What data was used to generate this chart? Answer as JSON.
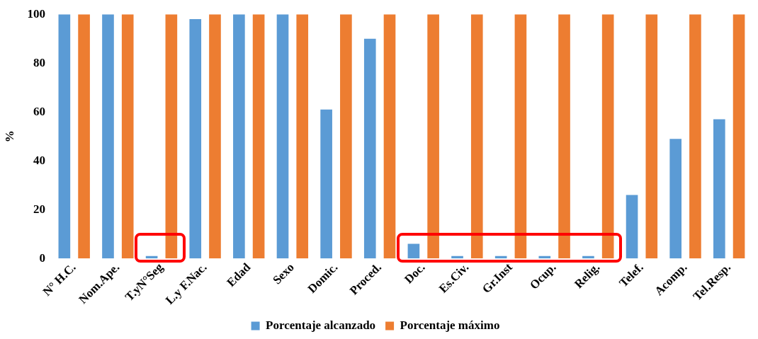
{
  "chart_data": {
    "type": "bar",
    "ylabel": "%",
    "categories": [
      "N° H.C.",
      "Nom.Ape.",
      "T.yN°Seg",
      "L.y F.Nac.",
      "Edad",
      "Sexo",
      "Domic.",
      "Proced.",
      "Doc.",
      "Es.Civ.",
      "Gr.Inst",
      "Ocup.",
      "Relig.",
      "Telef.",
      "Acomp.",
      "Tel.Resp."
    ],
    "series": [
      {
        "name": "Porcentaje alcanzado",
        "color": "#5b9bd5",
        "values": [
          100,
          100,
          1,
          98,
          100,
          100,
          61,
          90,
          6,
          1,
          1,
          1,
          1,
          26,
          49,
          57
        ]
      },
      {
        "name": "Porcentaje máximo",
        "color": "#ed7d31",
        "values": [
          100,
          100,
          100,
          100,
          100,
          100,
          100,
          100,
          100,
          100,
          100,
          100,
          100,
          100,
          100,
          100
        ]
      }
    ],
    "ylim": [
      0,
      100
    ],
    "yticks": [
      0,
      20,
      40,
      60,
      80,
      100
    ],
    "grid": false,
    "legend": "bottom"
  }
}
